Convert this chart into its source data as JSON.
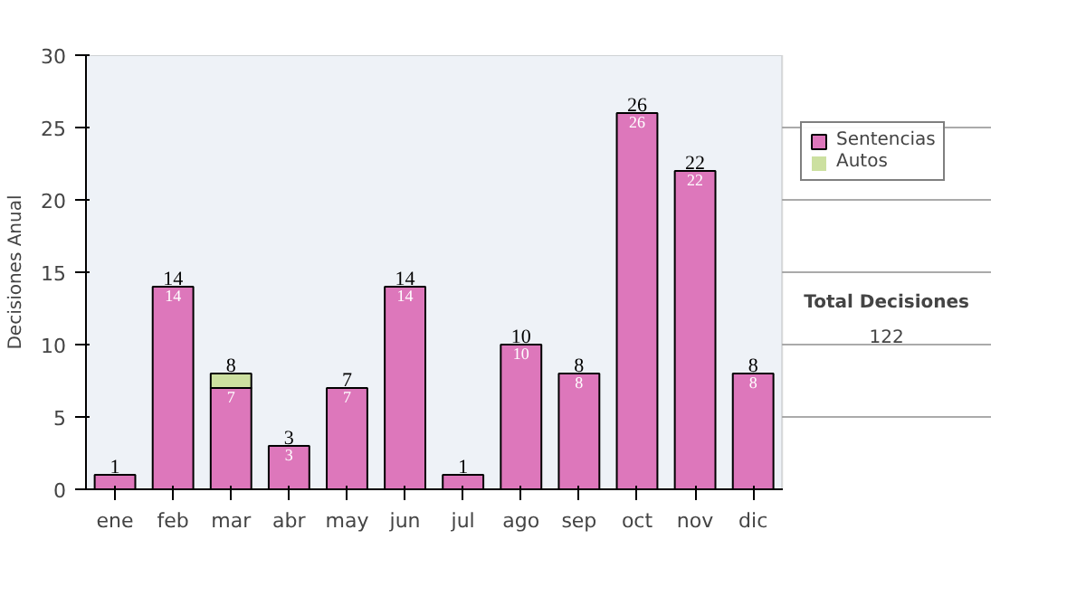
{
  "chart_data": {
    "type": "bar",
    "stacked": true,
    "ylabel": "Decisiones Anual",
    "categories": [
      "ene",
      "feb",
      "mar",
      "abr",
      "may",
      "jun",
      "jul",
      "ago",
      "sep",
      "oct",
      "nov",
      "dic"
    ],
    "series": [
      {
        "name": "Sentencias",
        "color": "#dd77bb",
        "values": [
          1,
          14,
          7,
          3,
          7,
          14,
          1,
          10,
          8,
          26,
          22,
          8
        ],
        "value_labels": [
          null,
          "14",
          "7",
          "3",
          "7",
          "14",
          null,
          "10",
          "8",
          "26",
          "22",
          "8"
        ]
      },
      {
        "name": "Autos",
        "color": "#cce0a0",
        "values": [
          0,
          0,
          1,
          0,
          0,
          0,
          0,
          0,
          0,
          0,
          0,
          0
        ]
      }
    ],
    "totals": [
      "1",
      "14",
      "8",
      "3",
      "7",
      "14",
      "1",
      "10",
      "8",
      "26",
      "22",
      "8"
    ],
    "ylim": [
      0,
      30
    ],
    "yticks": [
      0,
      5,
      10,
      15,
      20,
      25,
      30
    ],
    "grid": "y",
    "legend": "right",
    "annotations": [
      "Total Decisiones",
      "122"
    ]
  }
}
